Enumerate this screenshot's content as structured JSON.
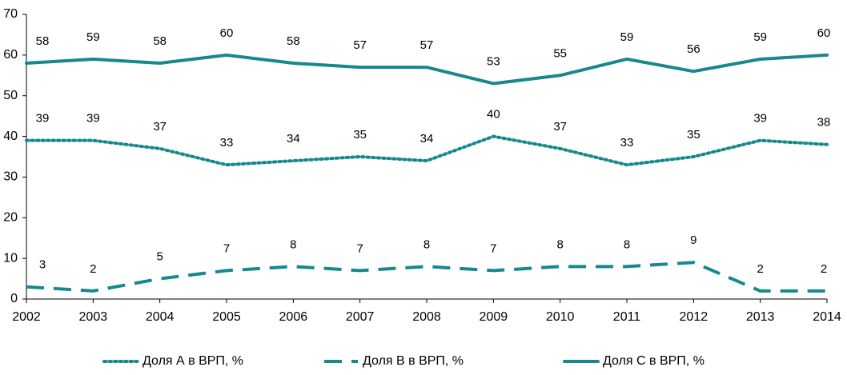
{
  "chart_data": {
    "type": "line",
    "categories": [
      "2002",
      "2003",
      "2004",
      "2005",
      "2006",
      "2007",
      "2008",
      "2009",
      "2010",
      "2011",
      "2012",
      "2013",
      "2014"
    ],
    "series": [
      {
        "name": "Доля А в ВРП, %",
        "color": "#17898c",
        "dash": "dotted",
        "values": [
          39,
          39,
          37,
          33,
          34,
          35,
          34,
          40,
          37,
          33,
          35,
          39,
          38
        ]
      },
      {
        "name": "Доля В в ВРП, %",
        "color": "#17898c",
        "dash": "dashed",
        "values": [
          3,
          2,
          5,
          7,
          8,
          7,
          8,
          7,
          8,
          8,
          9,
          2,
          2
        ]
      },
      {
        "name": "Доля С в ВРП, %",
        "color": "#17898c",
        "dash": "solid",
        "values": [
          58,
          59,
          58,
          60,
          58,
          57,
          57,
          53,
          55,
          59,
          56,
          59,
          60
        ]
      }
    ],
    "ylim": [
      0,
      70
    ],
    "yticks": [
      0,
      10,
      20,
      30,
      40,
      50,
      60,
      70
    ],
    "grid": false,
    "legend": "bottom"
  }
}
